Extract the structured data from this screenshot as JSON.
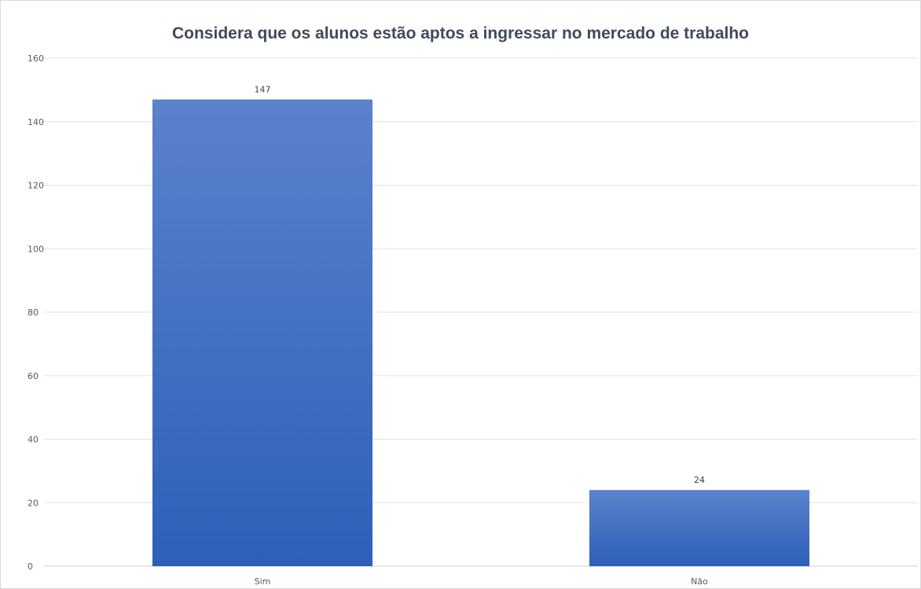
{
  "chart_data": {
    "type": "bar",
    "title": "Considera que os alunos estão aptos a ingressar no mercado de trabalho",
    "xlabel": "",
    "ylabel": "",
    "categories": [
      "Sim",
      "Não"
    ],
    "values": [
      147,
      24
    ],
    "data_labels": [
      "147",
      "24"
    ],
    "ylim": [
      0,
      160
    ],
    "yticks": [
      0,
      20,
      40,
      60,
      80,
      100,
      120,
      140,
      160
    ],
    "grid": true,
    "legend": "none",
    "colors": {
      "bar_top": "#5b82cc",
      "bar_bottom": "#2e5fb9",
      "grid": "#e3e3e3",
      "axis": "#cfcfcf"
    }
  }
}
